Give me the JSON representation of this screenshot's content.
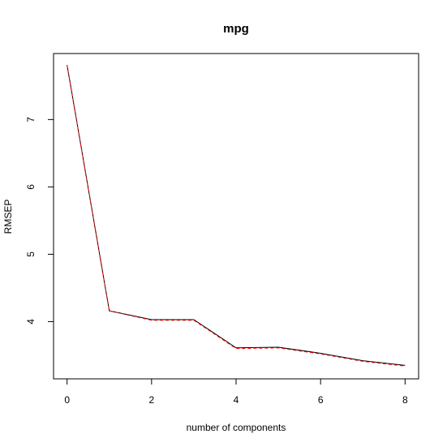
{
  "chart_data": {
    "type": "line",
    "title": "mpg",
    "xlabel": "number of components",
    "ylabel": "RMSEP",
    "x_ticks": [
      0,
      2,
      4,
      6,
      8
    ],
    "x_tick_labels": [
      "0",
      "2",
      "4",
      "6",
      "8"
    ],
    "y_ticks": [
      4,
      5,
      6,
      7
    ],
    "y_tick_labels": [
      "4",
      "5",
      "6",
      "7"
    ],
    "xlim": [
      -0.32,
      8.32
    ],
    "ylim": [
      3.15,
      7.98
    ],
    "grid": false,
    "legend": "none",
    "series": [
      {
        "color": "#000000",
        "style": "solid",
        "x": [
          0,
          1,
          2,
          3,
          4,
          5,
          6,
          7,
          8
        ],
        "values": [
          7.81,
          4.16,
          4.03,
          4.03,
          3.61,
          3.62,
          3.53,
          3.42,
          3.35
        ]
      },
      {
        "color": "#ff0000",
        "style": "dashed",
        "x": [
          0,
          1,
          2,
          3,
          4,
          5,
          6,
          7,
          8
        ],
        "values": [
          7.81,
          4.16,
          4.02,
          4.02,
          3.6,
          3.61,
          3.52,
          3.41,
          3.34
        ]
      }
    ]
  }
}
